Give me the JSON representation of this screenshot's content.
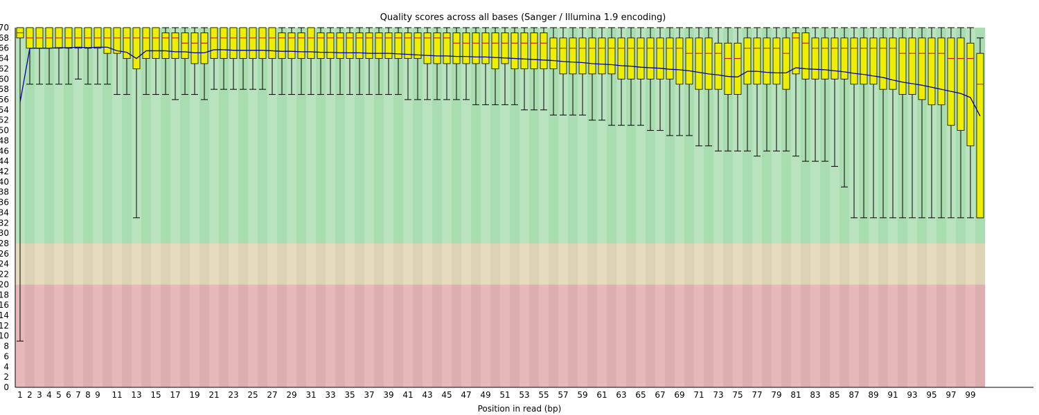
{
  "chart_data": {
    "type": "boxplot",
    "title": "Quality scores across all bases (Sanger / Illumina 1.9 encoding)",
    "xlabel": "Position in read (bp)",
    "ylabel": "",
    "ylim": [
      0,
      70
    ],
    "y_ticks": [
      0,
      2,
      4,
      6,
      8,
      10,
      12,
      14,
      16,
      18,
      20,
      22,
      24,
      26,
      28,
      30,
      32,
      34,
      36,
      38,
      40,
      42,
      44,
      46,
      48,
      50,
      52,
      54,
      56,
      58,
      60,
      62,
      64,
      66,
      68,
      70
    ],
    "x_tick_labels": [
      "1",
      "2",
      "3",
      "4",
      "5",
      "6",
      "7",
      "8",
      "9",
      "11",
      "13",
      "15",
      "17",
      "19",
      "21",
      "23",
      "25",
      "27",
      "29",
      "31",
      "33",
      "35",
      "37",
      "39",
      "41",
      "43",
      "45",
      "47",
      "49",
      "51",
      "53",
      "55",
      "57",
      "59",
      "61",
      "63",
      "65",
      "67",
      "69",
      "71",
      "73",
      "75",
      "77",
      "79",
      "81",
      "83",
      "85",
      "87",
      "89",
      "91",
      "93",
      "95",
      "97",
      "99"
    ],
    "quality_zones": [
      {
        "name": "good",
        "from": 28,
        "to": 70,
        "colors": [
          "#b9e3be",
          "#a9dcb0"
        ]
      },
      {
        "name": "reasonable",
        "from": 20,
        "to": 28,
        "colors": [
          "#e6dabf",
          "#dcd3b6"
        ]
      },
      {
        "name": "poor",
        "from": 0,
        "to": 20,
        "colors": [
          "#e6b8b9",
          "#dcaeb0"
        ]
      }
    ],
    "colors": {
      "box": "#eeee00",
      "median": "#cc0000",
      "mean_line": "#0000aa",
      "whisker": "#000000"
    },
    "positions": [
      1,
      2,
      3,
      4,
      5,
      6,
      7,
      8,
      9,
      10,
      11,
      12,
      13,
      14,
      15,
      16,
      17,
      18,
      19,
      20,
      21,
      22,
      23,
      24,
      25,
      26,
      27,
      28,
      29,
      30,
      31,
      32,
      33,
      34,
      35,
      36,
      37,
      38,
      39,
      40,
      41,
      42,
      43,
      44,
      45,
      46,
      47,
      48,
      49,
      50,
      51,
      52,
      53,
      54,
      55,
      56,
      57,
      58,
      59,
      60,
      61,
      62,
      63,
      64,
      65,
      66,
      67,
      68,
      69,
      70,
      71,
      72,
      73,
      74,
      75,
      76,
      77,
      78,
      79,
      80,
      81,
      82,
      83,
      84,
      85,
      86,
      87,
      88,
      89,
      90,
      91,
      92,
      93,
      94,
      95,
      96,
      97,
      98,
      99,
      100
    ],
    "lower_whisker": [
      9,
      59,
      59,
      59,
      59,
      59,
      60,
      59,
      59,
      59,
      57,
      57,
      33,
      57,
      57,
      57,
      56,
      57,
      57,
      56,
      58,
      58,
      58,
      58,
      58,
      58,
      57,
      57,
      57,
      57,
      57,
      57,
      57,
      57,
      57,
      57,
      57,
      57,
      57,
      57,
      56,
      56,
      56,
      56,
      56,
      56,
      56,
      55,
      55,
      55,
      55,
      55,
      54,
      54,
      54,
      53,
      53,
      53,
      53,
      52,
      52,
      51,
      51,
      51,
      51,
      50,
      50,
      49,
      49,
      49,
      47,
      47,
      46,
      46,
      46,
      46,
      45,
      46,
      46,
      46,
      45,
      44,
      44,
      44,
      43,
      39,
      33,
      33,
      33,
      33,
      33,
      33,
      33,
      33,
      33,
      33,
      33,
      33,
      33,
      33
    ],
    "q1": [
      68,
      66,
      66,
      66,
      66,
      66,
      66,
      66,
      66,
      65,
      65,
      64,
      62,
      64,
      64,
      64,
      64,
      64,
      63,
      63,
      64,
      64,
      64,
      64,
      64,
      64,
      64,
      64,
      64,
      64,
      64,
      64,
      64,
      64,
      64,
      64,
      64,
      64,
      64,
      64,
      64,
      64,
      63,
      63,
      63,
      63,
      63,
      63,
      63,
      62,
      63,
      62,
      62,
      62,
      62,
      62,
      61,
      61,
      61,
      61,
      61,
      61,
      60,
      60,
      60,
      60,
      60,
      60,
      59,
      59,
      58,
      58,
      58,
      57,
      57,
      59,
      59,
      59,
      59,
      58,
      61,
      60,
      60,
      60,
      60,
      60,
      59,
      59,
      59,
      58,
      58,
      57,
      57,
      56,
      55,
      55,
      51,
      50,
      47,
      33
    ],
    "median": [
      69,
      68,
      68,
      68,
      68,
      68,
      68,
      68,
      68,
      68,
      68,
      68,
      68,
      68,
      68,
      68,
      68,
      67,
      67,
      67,
      68,
      68,
      68,
      68,
      68,
      68,
      68,
      68,
      68,
      68,
      68,
      68,
      68,
      68,
      68,
      68,
      68,
      68,
      68,
      68,
      68,
      68,
      68,
      68,
      68,
      67,
      67,
      67,
      67,
      67,
      67,
      67,
      67,
      67,
      67,
      66,
      66,
      66,
      66,
      66,
      66,
      66,
      66,
      66,
      66,
      66,
      66,
      66,
      66,
      65,
      65,
      65,
      65,
      64,
      64,
      66,
      66,
      66,
      66,
      65,
      68,
      67,
      66,
      66,
      66,
      66,
      66,
      66,
      66,
      66,
      66,
      65,
      65,
      65,
      65,
      65,
      64,
      64,
      64,
      59
    ],
    "q3": [
      70,
      70,
      70,
      70,
      70,
      70,
      70,
      70,
      70,
      70,
      70,
      70,
      70,
      70,
      70,
      69,
      69,
      69,
      69,
      69,
      70,
      70,
      70,
      70,
      70,
      70,
      70,
      69,
      69,
      69,
      70,
      69,
      69,
      69,
      69,
      69,
      69,
      69,
      69,
      69,
      69,
      69,
      69,
      69,
      69,
      69,
      69,
      69,
      69,
      69,
      69,
      69,
      69,
      69,
      69,
      68,
      68,
      68,
      68,
      68,
      68,
      68,
      68,
      68,
      68,
      68,
      68,
      68,
      68,
      68,
      68,
      68,
      67,
      67,
      67,
      68,
      68,
      68,
      68,
      68,
      69,
      69,
      68,
      68,
      68,
      68,
      68,
      68,
      68,
      68,
      68,
      68,
      68,
      68,
      68,
      68,
      68,
      68,
      67,
      65
    ],
    "upper_whisker": [
      70,
      70,
      70,
      70,
      70,
      70,
      70,
      70,
      70,
      70,
      70,
      70,
      70,
      70,
      70,
      70,
      70,
      70,
      70,
      70,
      70,
      70,
      70,
      70,
      70,
      70,
      70,
      70,
      70,
      70,
      70,
      70,
      70,
      70,
      70,
      70,
      70,
      70,
      70,
      70,
      70,
      70,
      70,
      70,
      70,
      70,
      70,
      70,
      70,
      70,
      70,
      70,
      70,
      70,
      70,
      70,
      70,
      70,
      70,
      70,
      70,
      70,
      70,
      70,
      70,
      70,
      70,
      70,
      70,
      70,
      70,
      70,
      70,
      70,
      70,
      70,
      70,
      70,
      70,
      70,
      70,
      70,
      70,
      70,
      70,
      70,
      70,
      70,
      70,
      70,
      70,
      70,
      70,
      70,
      70,
      70,
      70,
      70,
      70,
      68
    ],
    "mean": [
      55.5,
      66,
      66,
      66,
      66.1,
      66.1,
      66.2,
      66.1,
      66.2,
      66.2,
      65.5,
      65.2,
      64,
      65.5,
      65.5,
      65.5,
      65.3,
      65.3,
      65.1,
      65.1,
      65.7,
      65.7,
      65.6,
      65.6,
      65.6,
      65.6,
      65.5,
      65.4,
      65.4,
      65.3,
      65.3,
      65.2,
      65.2,
      65.1,
      65.1,
      65.1,
      65,
      65,
      65,
      64.9,
      64.8,
      64.7,
      64.6,
      64.5,
      64.5,
      64.4,
      64.4,
      64.3,
      64.3,
      64.2,
      64.1,
      64,
      63.9,
      63.8,
      63.7,
      63.6,
      63.4,
      63.3,
      63.2,
      63,
      62.9,
      62.8,
      62.6,
      62.5,
      62.3,
      62.2,
      62.1,
      61.9,
      61.8,
      61.6,
      61.3,
      61,
      60.8,
      60.5,
      60.4,
      61.5,
      61.5,
      61.3,
      61.2,
      61.2,
      62.2,
      62,
      61.9,
      61.8,
      61.6,
      61.4,
      61.1,
      60.9,
      60.6,
      60.3,
      59.8,
      59.4,
      59.1,
      58.8,
      58.4,
      58,
      57.6,
      57.2,
      56.4,
      52.8
    ]
  }
}
